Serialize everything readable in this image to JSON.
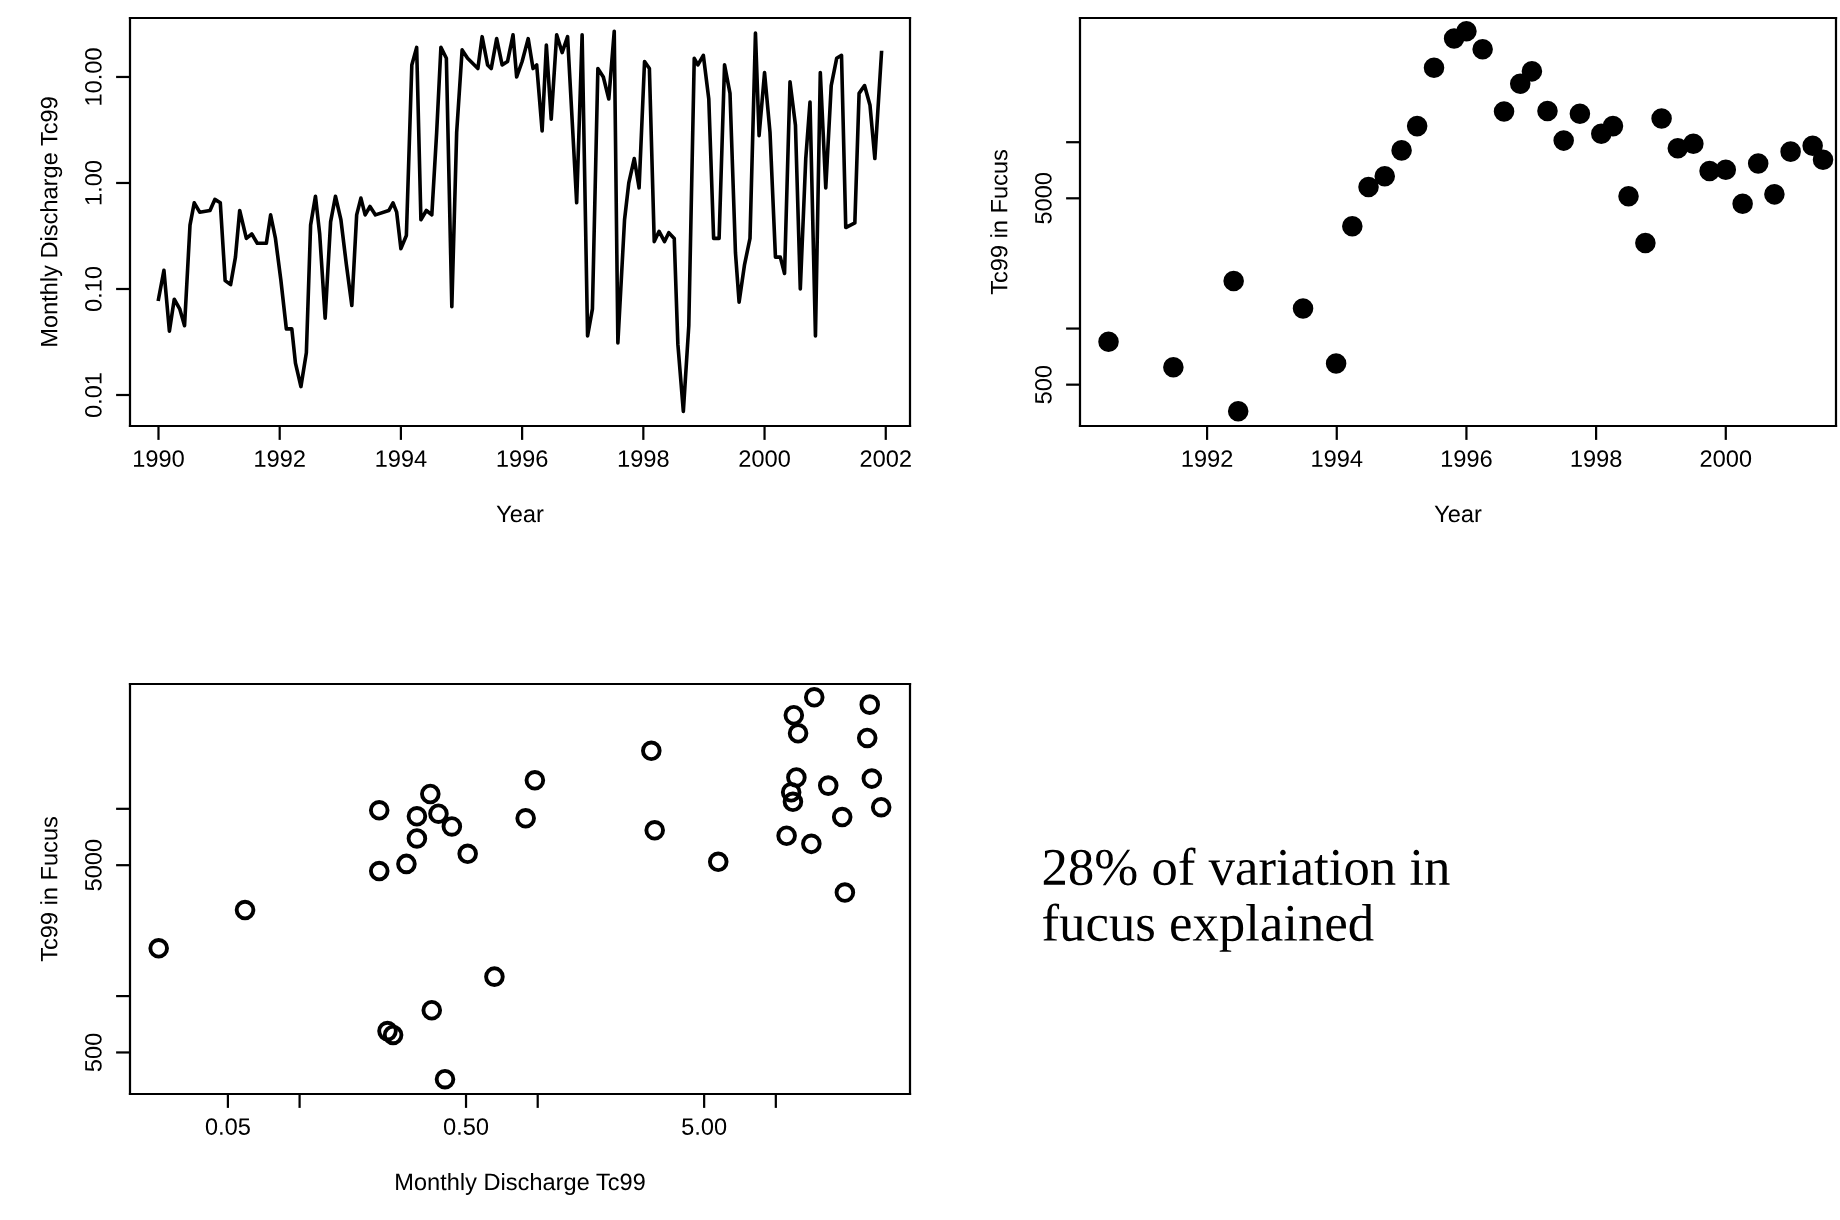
{
  "chart_data": [
    {
      "type": "line",
      "xlabel": "Year",
      "ylabel": "Monthly Discharge Tc99",
      "log": "y",
      "marker": "none",
      "line_style": "solid",
      "xlim": [
        1989.53,
        2002.4
      ],
      "xticks": [
        1990,
        1992,
        1994,
        1996,
        1998,
        2000,
        2002
      ],
      "ylim": [
        0.0051,
        36
      ],
      "yticks": [
        {
          "value": 0.01,
          "label": "0.01"
        },
        {
          "value": 0.1,
          "label": "0.10"
        },
        {
          "value": 1,
          "label": "1.00"
        },
        {
          "value": 10,
          "label": "10.00"
        }
      ],
      "series": [
        {
          "color": "#000000",
          "x": [
            1990.0,
            1990.09,
            1990.18,
            1990.26,
            1990.35,
            1990.43,
            1990.52,
            1990.59,
            1990.68,
            1990.85,
            1990.93,
            1991.02,
            1991.1,
            1991.19,
            1991.27,
            1991.34,
            1991.45,
            1991.54,
            1991.63,
            1991.78,
            1991.85,
            1991.93,
            1992.02,
            1992.11,
            1992.2,
            1992.26,
            1992.35,
            1992.44,
            1992.51,
            1992.59,
            1992.66,
            1992.75,
            1992.84,
            1992.92,
            1993.01,
            1993.1,
            1993.19,
            1993.27,
            1993.34,
            1993.41,
            1993.49,
            1993.58,
            1993.8,
            1993.87,
            1993.93,
            1994.0,
            1994.09,
            1994.18,
            1994.26,
            1994.33,
            1994.42,
            1994.51,
            1994.59,
            1994.66,
            1994.75,
            1994.84,
            1994.92,
            1995.01,
            1995.1,
            1995.27,
            1995.34,
            1995.43,
            1995.49,
            1995.58,
            1995.67,
            1995.76,
            1995.85,
            1995.91,
            1996.0,
            1996.1,
            1996.18,
            1996.24,
            1996.33,
            1996.4,
            1996.48,
            1996.57,
            1996.66,
            1996.75,
            1996.9,
            1996.99,
            1997.08,
            1997.16,
            1997.25,
            1997.34,
            1997.43,
            1997.52,
            1997.58,
            1997.69,
            1997.76,
            1997.85,
            1997.93,
            1998.02,
            1998.1,
            1998.18,
            1998.26,
            1998.35,
            1998.42,
            1998.51,
            1998.57,
            1998.66,
            1998.75,
            1998.84,
            1998.9,
            1998.99,
            1999.08,
            1999.16,
            1999.25,
            1999.34,
            1999.43,
            1999.52,
            1999.58,
            1999.67,
            1999.76,
            1999.85,
            1999.91,
            2000.0,
            2000.09,
            2000.18,
            2000.26,
            2000.33,
            2000.42,
            2000.51,
            2000.59,
            2000.68,
            2000.75,
            2000.84,
            2000.92,
            2001.01,
            2001.1,
            2001.19,
            2001.27,
            2001.34,
            2001.49,
            2001.56,
            2001.65,
            2001.74,
            2001.82,
            2001.93
          ],
          "values": [
            0.08,
            0.15,
            0.04,
            0.08,
            0.065,
            0.045,
            0.4,
            0.65,
            0.53,
            0.55,
            0.7,
            0.65,
            0.12,
            0.11,
            0.2,
            0.55,
            0.3,
            0.33,
            0.27,
            0.27,
            0.5,
            0.3,
            0.12,
            0.042,
            0.042,
            0.02,
            0.012,
            0.025,
            0.4,
            0.75,
            0.33,
            0.053,
            0.43,
            0.75,
            0.45,
            0.17,
            0.07,
            0.5,
            0.72,
            0.5,
            0.6,
            0.5,
            0.55,
            0.65,
            0.53,
            0.24,
            0.32,
            13,
            19,
            0.45,
            0.55,
            0.5,
            3,
            19,
            15,
            0.068,
            3,
            18,
            15,
            12,
            24,
            13,
            12,
            23,
            13,
            14,
            25,
            10,
            14,
            23,
            12,
            13,
            3.1,
            20,
            4,
            25,
            17,
            24,
            0.65,
            25,
            0.036,
            0.065,
            12,
            10,
            6.2,
            27,
            0.031,
            0.45,
            1.0,
            1.7,
            0.9,
            14,
            12,
            0.28,
            0.35,
            0.28,
            0.34,
            0.3,
            0.03,
            0.007,
            0.045,
            15,
            13,
            16,
            6.2,
            0.3,
            0.3,
            13,
            7,
            0.22,
            0.075,
            0.17,
            0.3,
            26,
            2.8,
            11,
            3,
            0.2,
            0.2,
            0.14,
            9,
            3.5,
            0.1,
            1.7,
            5.8,
            0.036,
            11,
            0.9,
            8.3,
            15,
            16,
            0.38,
            0.42,
            7,
            8.3,
            5.4,
            1.7,
            17
          ]
        }
      ]
    },
    {
      "type": "scatter",
      "xlabel": "Year",
      "ylabel": "Tc99 in Fucus",
      "log": "y",
      "marker": "circle",
      "xlim": [
        1990.04,
        2001.7
      ],
      "xticks": [
        1992,
        1994,
        1996,
        1998,
        2000
      ],
      "ylim": [
        300,
        46400
      ],
      "yticks": [
        500,
        {
          "value": 1000,
          "label": null
        },
        5000,
        {
          "value": 10000,
          "label": null
        }
      ],
      "series": [
        {
          "color": "#000000",
          "x": [
            1990.48,
            1991.48,
            1992.41,
            1992.48,
            1993.48,
            1993.99,
            1994.24,
            1994.49,
            1994.74,
            1995.0,
            1995.24,
            1995.5,
            1995.81,
            1996.0,
            1996.25,
            1996.58,
            1996.83,
            1997.01,
            1997.25,
            1997.5,
            1997.75,
            1998.08,
            1998.26,
            1998.5,
            1998.76,
            1999.01,
            1999.26,
            1999.5,
            1999.75,
            2000.0,
            2000.26,
            2000.5,
            2000.75,
            2001.0,
            2001.34,
            2001.5
          ],
          "values": [
            850,
            620,
            1800,
            360,
            1280,
            650,
            3540,
            5750,
            6560,
            9040,
            12200,
            25100,
            36000,
            39400,
            31500,
            14600,
            20600,
            24000,
            14700,
            10200,
            14200,
            11100,
            12200,
            5130,
            2880,
            13400,
            9270,
            9820,
            7000,
            7120,
            4680,
            7680,
            5250,
            8900,
            9570,
            8050
          ]
        }
      ]
    },
    {
      "type": "scatter",
      "xlabel": "Monthly Discharge Tc99",
      "ylabel": "Tc99 in Fucus",
      "log": "xy",
      "marker": "circle",
      "xlim": [
        0.0194,
        36.6
      ],
      "xticks": [
        0.05,
        {
          "value": 0.1,
          "label": null
        },
        {
          "value": 0.5,
          "label": "0.50"
        },
        {
          "value": 1,
          "label": null
        },
        {
          "value": 5,
          "label": "5.00"
        },
        {
          "value": 10,
          "label": null
        }
      ],
      "ylim": [
        300,
        46400
      ],
      "yticks": [
        500,
        {
          "value": 1000,
          "label": null
        },
        5000,
        {
          "value": 10000,
          "label": null
        }
      ],
      "series": [
        {
          "color": "#000000",
          "x": [
            0.0256,
            0.059,
            0.216,
            0.216,
            0.281,
            0.311,
            0.311,
            0.354,
            0.383,
            0.436,
            0.508,
            0.234,
            0.247,
            0.359,
            0.408,
            0.658,
            0.89,
            0.973,
            3.0,
            3.1,
            5.73,
            11.1,
            11.6,
            11.8,
            12.2,
            11.9,
            12.4,
            14.5,
            14.1,
            16.6,
            19.0,
            19.5,
            24.2,
            24.8,
            25.3,
            27.7
          ],
          "values": [
            1800,
            2880,
            9820,
            4650,
            5080,
            9120,
            6950,
            12000,
            9420,
            8050,
            5750,
            650,
            620,
            840,
            360,
            1270,
            8900,
            14200,
            20400,
            7680,
            5210,
            7180,
            12250,
            10900,
            14700,
            31600,
            25300,
            39400,
            6500,
            13300,
            9040,
            3570,
            23900,
            36000,
            14500,
            10200
          ]
        }
      ]
    },
    {
      "type": "other",
      "annotations": [
        "28% of variation in\nfucus explained"
      ]
    }
  ]
}
